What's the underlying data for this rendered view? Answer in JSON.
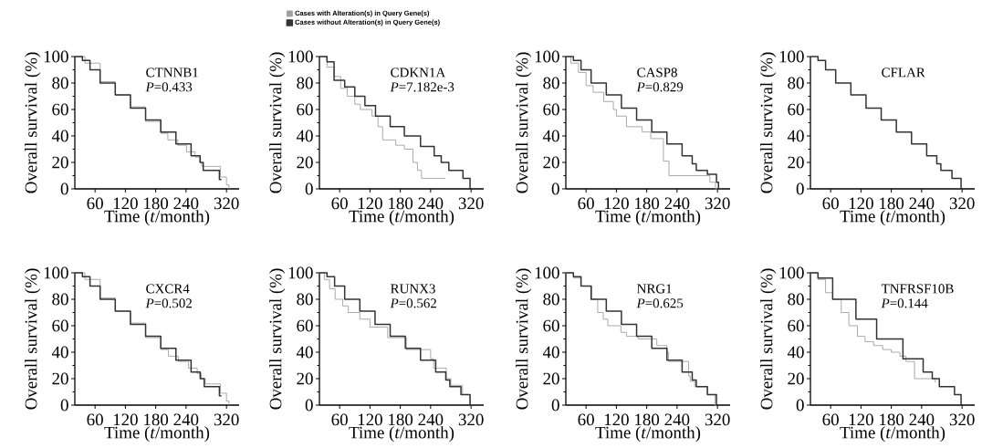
{
  "chart_data": [
    {
      "type": "step",
      "xlabel": "Time (*t*/month)",
      "ylabel": "Overall survival (%)",
      "annotations": [
        "CTNNB1",
        "*P*=0.433"
      ],
      "xlim": [
        20,
        345
      ],
      "ylim": [
        0,
        100
      ],
      "xticks": [
        60,
        120,
        180,
        240,
        320
      ],
      "yticks": [
        0,
        20,
        40,
        60,
        80,
        100
      ],
      "legend": "top right",
      "series": [
        {
          "name": "Cases with Alteration(s) in Query Gene(s)",
          "color": "#a0a0a0",
          "x": [
            20,
            40,
            70,
            100,
            130,
            160,
            190,
            204,
            224,
            241,
            258,
            267,
            271,
            308,
            320,
            325
          ],
          "values": [
            100,
            95,
            81,
            71,
            62,
            51,
            42,
            37,
            33,
            28,
            24,
            20,
            17,
            9,
            3,
            0
          ]
        },
        {
          "name": "Cases without Alteration(s) in Query Gene(s)",
          "color": "#333333",
          "x": [
            20,
            35,
            50,
            70,
            100,
            130,
            160,
            190,
            220,
            250,
            268,
            274,
            306,
            310
          ],
          "values": [
            100,
            97,
            90,
            80,
            71,
            61,
            52,
            43,
            34,
            25,
            20,
            14,
            7,
            7
          ]
        }
      ]
    },
    {
      "type": "step",
      "xlabel": "Time (*t*/month)",
      "ylabel": "Overall survival (%)",
      "annotations": [
        "CDKN1A",
        "*P*=7.182e-3"
      ],
      "xlim": [
        20,
        345
      ],
      "ylim": [
        0,
        100
      ],
      "xticks": [
        60,
        120,
        180,
        240,
        320
      ],
      "yticks": [
        0,
        20,
        40,
        60,
        80,
        100
      ],
      "series": [
        {
          "color": "#a0a0a0",
          "x": [
            20,
            35,
            49,
            62,
            75,
            90,
            101,
            124,
            136,
            145,
            171,
            188,
            205,
            214,
            222,
            269
          ],
          "values": [
            100,
            92,
            85,
            76,
            70,
            64,
            60,
            55,
            47,
            37,
            33,
            30,
            20,
            14,
            8,
            8
          ]
        },
        {
          "color": "#333333",
          "x": [
            20,
            35,
            49,
            70,
            90,
            110,
            131,
            160,
            188,
            220,
            247,
            261,
            276,
            304,
            318,
            324
          ],
          "values": [
            100,
            96,
            82,
            77,
            70,
            63,
            55,
            47,
            40,
            32,
            25,
            20,
            14,
            8,
            0,
            0
          ]
        }
      ]
    },
    {
      "type": "step",
      "xlabel": "Time (*t*/month)",
      "ylabel": "Overall survival (%)",
      "annotations": [
        "CASP8",
        "*P*=0.829"
      ],
      "xlim": [
        20,
        345
      ],
      "ylim": [
        0,
        100
      ],
      "xticks": [
        60,
        120,
        180,
        240,
        320
      ],
      "yticks": [
        0,
        20,
        40,
        60,
        80,
        100
      ],
      "series": [
        {
          "color": "#a0a0a0",
          "x": [
            20,
            30,
            45,
            60,
            74,
            95,
            114,
            120,
            140,
            171,
            188,
            213,
            224,
            239,
            305,
            316,
            320
          ],
          "values": [
            100,
            95,
            88,
            78,
            73,
            66,
            60,
            55,
            47,
            43,
            38,
            21,
            10,
            10,
            5,
            0,
            0
          ]
        },
        {
          "color": "#333333",
          "x": [
            20,
            35,
            50,
            70,
            100,
            130,
            160,
            190,
            220,
            250,
            270,
            278,
            300,
            318,
            322
          ],
          "values": [
            100,
            97,
            90,
            80,
            71,
            61,
            52,
            43,
            34,
            25,
            19,
            14,
            11,
            5,
            0
          ]
        }
      ]
    },
    {
      "type": "step",
      "xlabel": "Time (*t*/month)",
      "ylabel": "Overall survival (%)",
      "annotations": [
        "CFLAR"
      ],
      "xlim": [
        20,
        345
      ],
      "ylim": [
        0,
        100
      ],
      "xticks": [
        60,
        120,
        180,
        240,
        320
      ],
      "yticks": [
        0,
        20,
        40,
        60,
        80,
        100
      ],
      "series": [
        {
          "color": "#333333",
          "x": [
            20,
            35,
            50,
            70,
            100,
            130,
            160,
            190,
            220,
            250,
            270,
            278,
            300,
            318,
            322
          ],
          "values": [
            100,
            97,
            90,
            80,
            71,
            61,
            52,
            43,
            34,
            25,
            19,
            14,
            8,
            0,
            0
          ]
        }
      ]
    },
    {
      "type": "step",
      "xlabel": "Time (*t*/month)",
      "ylabel": "Overall survival (%)",
      "annotations": [
        "CXCR4",
        "*P*=0.502"
      ],
      "xlim": [
        20,
        345
      ],
      "ylim": [
        0,
        100
      ],
      "xticks": [
        60,
        120,
        180,
        240,
        320
      ],
      "yticks": [
        0,
        20,
        40,
        60,
        80,
        100
      ],
      "series": [
        {
          "color": "#a0a0a0",
          "x": [
            20,
            40,
            70,
            100,
            130,
            160,
            190,
            205,
            225,
            245,
            262,
            270,
            278,
            308,
            320,
            325
          ],
          "values": [
            100,
            95,
            81,
            71,
            62,
            51,
            42,
            37,
            33,
            28,
            24,
            20,
            16,
            9,
            3,
            0
          ]
        },
        {
          "color": "#333333",
          "x": [
            20,
            35,
            50,
            70,
            100,
            130,
            160,
            190,
            220,
            250,
            268,
            276,
            306,
            310
          ],
          "values": [
            100,
            97,
            90,
            80,
            71,
            61,
            52,
            43,
            34,
            25,
            20,
            14,
            7,
            7
          ]
        }
      ]
    },
    {
      "type": "step",
      "xlabel": "Time (*t*/month)",
      "ylabel": "Overall survival (%)",
      "annotations": [
        "RUNX3",
        "*P*=0.562"
      ],
      "xlim": [
        20,
        345
      ],
      "ylim": [
        0,
        100
      ],
      "xticks": [
        60,
        120,
        180,
        240,
        320
      ],
      "yticks": [
        0,
        20,
        40,
        60,
        80,
        100
      ],
      "series": [
        {
          "color": "#a0a0a0",
          "x": [
            20,
            30,
            40,
            51,
            66,
            77,
            100,
            120,
            155,
            192,
            240,
            246,
            271,
            280,
            303,
            318,
            322
          ],
          "values": [
            100,
            95,
            88,
            80,
            75,
            70,
            65,
            59,
            51,
            42,
            35,
            28,
            20,
            15,
            8,
            0,
            0
          ]
        },
        {
          "color": "#333333",
          "x": [
            20,
            35,
            50,
            70,
            100,
            130,
            160,
            190,
            220,
            250,
            270,
            278,
            300,
            318,
            322
          ],
          "values": [
            100,
            97,
            90,
            80,
            71,
            61,
            52,
            43,
            34,
            25,
            19,
            14,
            8,
            0,
            0
          ]
        }
      ]
    },
    {
      "type": "step",
      "xlabel": "Time (*t*/month)",
      "ylabel": "Overall survival (%)",
      "annotations": [
        "NRG1",
        "*P*=0.625"
      ],
      "xlim": [
        20,
        345
      ],
      "ylim": [
        0,
        100
      ],
      "xticks": [
        60,
        120,
        180,
        240,
        320
      ],
      "yticks": [
        0,
        20,
        40,
        60,
        80,
        100
      ],
      "series": [
        {
          "color": "#a0a0a0",
          "x": [
            20,
            35,
            50,
            71,
            83,
            94,
            103,
            129,
            140,
            163,
            200,
            220,
            223,
            263,
            266,
            275,
            300,
            315,
            318
          ],
          "values": [
            100,
            96,
            90,
            80,
            70,
            65,
            60,
            55,
            52,
            50,
            45,
            40,
            33,
            22,
            18,
            14,
            8,
            0,
            0
          ]
        },
        {
          "color": "#333333",
          "x": [
            20,
            35,
            50,
            70,
            100,
            130,
            160,
            190,
            220,
            250,
            270,
            278,
            300,
            318,
            322
          ],
          "values": [
            100,
            97,
            90,
            80,
            71,
            61,
            52,
            43,
            34,
            25,
            19,
            14,
            8,
            0,
            0
          ]
        }
      ]
    },
    {
      "type": "step",
      "xlabel": "Time (*t*/month)",
      "ylabel": "Overall survival (%)",
      "annotations": [
        "TNFRSF10B",
        "*P*=0.144"
      ],
      "xlim": [
        20,
        345
      ],
      "ylim": [
        0,
        100
      ],
      "xticks": [
        60,
        120,
        180,
        240,
        320
      ],
      "yticks": [
        0,
        20,
        40,
        60,
        80,
        100
      ],
      "series": [
        {
          "color": "#a0a0a0",
          "x": [
            20,
            35,
            50,
            64,
            81,
            96,
            113,
            128,
            145,
            163,
            180,
            197,
            209,
            226,
            255,
            267
          ],
          "values": [
            100,
            95,
            85,
            80,
            70,
            60,
            52,
            48,
            45,
            42,
            40,
            37,
            33,
            20,
            20,
            17
          ]
        },
        {
          "color": "#333333",
          "x": [
            20,
            35,
            64,
            110,
            151,
            203,
            243,
            261,
            275,
            305,
            318,
            322
          ],
          "values": [
            100,
            96,
            80,
            65,
            50,
            35,
            25,
            20,
            14,
            8,
            0,
            0
          ]
        }
      ]
    }
  ]
}
